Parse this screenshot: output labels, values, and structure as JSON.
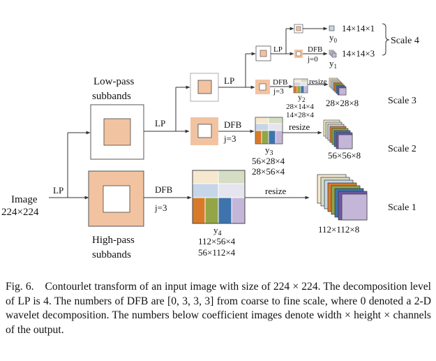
{
  "figure": {
    "input_label": "Image",
    "input_size": "224×224",
    "lp": "LP",
    "dfb": "DFB",
    "j0": "j=0",
    "j3": "j=3",
    "resize": "resize",
    "lowpass_line1": "Low-pass",
    "lowpass_line2": "subbands",
    "highpass_line1": "High-pass",
    "highpass_line2": "subbands",
    "y0": "y",
    "y0_sub": "0",
    "y1": "y",
    "y1_sub": "1",
    "y2": "y",
    "y2_sub": "2",
    "y3": "y",
    "y3_sub": "3",
    "y4": "y",
    "y4_sub": "4",
    "y0_size": "14×14×1",
    "y1_size": "14×14×3",
    "y2_size_a": "28×14×4",
    "y2_size_b": "14×28×4",
    "y2_out": "28×28×8",
    "y3_size_a": "56×28×4",
    "y3_size_b": "28×56×4",
    "y3_out": "56×56×8",
    "y4_size_a": "112×56×4",
    "y4_size_b": "56×112×4",
    "y4_out": "112×112×8",
    "scale4": "Scale 4",
    "scale3": "Scale 3",
    "scale2": "Scale 2",
    "scale1": "Scale 1"
  },
  "caption": {
    "label": "Fig. 6.",
    "text": "Contourlet transform of an input image with size of 224 × 224. The decomposition level of LP is 4. The numbers of DFB are [0, 3, 3, 3] from coarse to fine scale, where 0 denoted a 2-D wavelet decomposition. The numbers below coefficient images denote width × height × channels of the output."
  },
  "colors": {
    "peach": "#f2c3a1",
    "orange": "#d97a2a",
    "olive": "#93a546",
    "blue": "#3e74ad",
    "lavender": "#c4b6d9",
    "cream": "#f6e7cf",
    "lightblue": "#c6d6e8",
    "lightlav": "#e6e4ee",
    "lightgreen": "#d5dec4",
    "teal": "#2b8fa3",
    "purple": "#6f58a6",
    "gray": "#9a9a9a"
  }
}
